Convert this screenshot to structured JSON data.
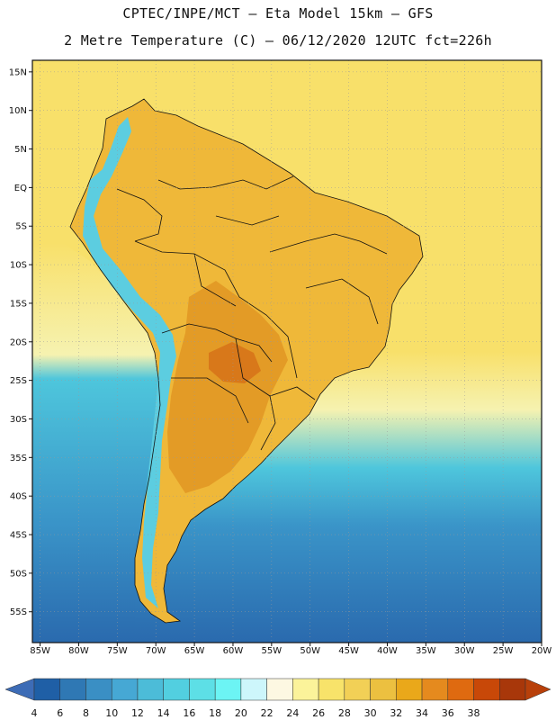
{
  "title": {
    "line1": "CPTEC/INPE/MCT –  Eta Model 15km – GFS",
    "line2": "2 Metre Temperature (C) – 06/12/2020 12UTC fct=226h"
  },
  "map": {
    "variable": "2 Metre Temperature",
    "units": "C",
    "lon_range": [
      -86,
      -20
    ],
    "lat_range": [
      -59,
      16.5
    ],
    "lat_ticks": [
      {
        "value": 15,
        "label": "15N"
      },
      {
        "value": 10,
        "label": "10N"
      },
      {
        "value": 5,
        "label": "5N"
      },
      {
        "value": 0,
        "label": "EQ"
      },
      {
        "value": -5,
        "label": "5S"
      },
      {
        "value": -10,
        "label": "10S"
      },
      {
        "value": -15,
        "label": "15S"
      },
      {
        "value": -20,
        "label": "20S"
      },
      {
        "value": -25,
        "label": "25S"
      },
      {
        "value": -30,
        "label": "30S"
      },
      {
        "value": -35,
        "label": "35S"
      },
      {
        "value": -40,
        "label": "40S"
      },
      {
        "value": -45,
        "label": "45S"
      },
      {
        "value": -50,
        "label": "50S"
      },
      {
        "value": -55,
        "label": "55S"
      }
    ],
    "lon_ticks": [
      {
        "value": -85,
        "label": "85W"
      },
      {
        "value": -80,
        "label": "80W"
      },
      {
        "value": -75,
        "label": "75W"
      },
      {
        "value": -70,
        "label": "70W"
      },
      {
        "value": -65,
        "label": "65W"
      },
      {
        "value": -60,
        "label": "60W"
      },
      {
        "value": -55,
        "label": "55W"
      },
      {
        "value": -50,
        "label": "50W"
      },
      {
        "value": -45,
        "label": "45W"
      },
      {
        "value": -40,
        "label": "40W"
      },
      {
        "value": -35,
        "label": "35W"
      },
      {
        "value": -30,
        "label": "30W"
      },
      {
        "value": -25,
        "label": "25W"
      },
      {
        "value": -20,
        "label": "20W"
      }
    ]
  },
  "colorbar": {
    "labels": [
      "4",
      "6",
      "8",
      "10",
      "12",
      "14",
      "16",
      "18",
      "20",
      "22",
      "24",
      "26",
      "28",
      "30",
      "32",
      "34",
      "36",
      "38"
    ],
    "colors": [
      "#1f5fa6",
      "#2f78b4",
      "#3a8fc4",
      "#46a8d4",
      "#4cbcd8",
      "#52cfe0",
      "#5ddfe6",
      "#6cf4f4",
      "#cdf6fb",
      "#fdf8e2",
      "#fbf39a",
      "#f8e36a",
      "#f2d056",
      "#ecc040",
      "#eaa81a",
      "#e58a1e",
      "#df6a10",
      "#c84808",
      "#a8370a"
    ],
    "arrow_low_color": "#3d6cb6",
    "arrow_high_color": "#b8400a"
  },
  "colors": {
    "ocean_tropical": "#f8e06a",
    "ocean_transition": "#f6f2b0",
    "ocean_cool": "#4ec6dc",
    "ocean_cold": "#3a94c8",
    "ocean_frigid": "#2a6aae",
    "land_base": "#efb839",
    "land_hot": "#e39b26",
    "land_very_hot": "#d8781a",
    "andes_cold": "#5ccde0",
    "border": "#111111"
  }
}
